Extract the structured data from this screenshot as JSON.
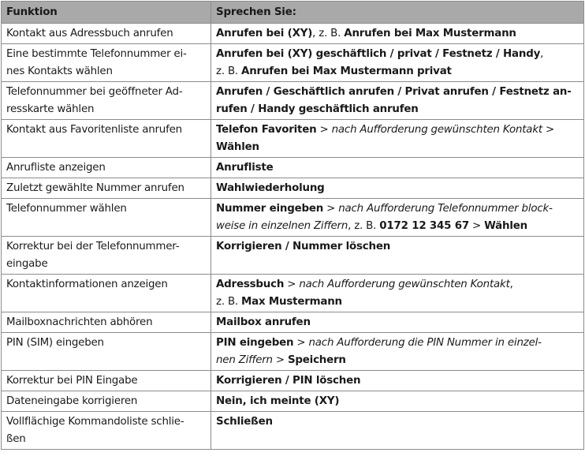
{
  "header": {
    "funktion": "Funktion",
    "sprechen": "Sprechen Sie:"
  },
  "rows": [
    {
      "funktion": [
        "Kontakt aus Adressbuch anrufen"
      ],
      "sprechen": [
        [
          {
            "t": "Anrufen bei (XY)",
            "s": "b"
          },
          {
            "t": ", z. B. ",
            "s": ""
          },
          {
            "t": "Anrufen bei Max Mustermann",
            "s": "b"
          }
        ]
      ]
    },
    {
      "funktion": [
        "Eine bestimmte Telefonnummer ei-",
        "nes Kontakts wählen"
      ],
      "sprechen": [
        [
          {
            "t": "Anrufen bei (XY) geschäftlich / privat / Festnetz / Handy",
            "s": "b"
          },
          {
            "t": ",",
            "s": ""
          }
        ],
        [
          {
            "t": "z. B. ",
            "s": ""
          },
          {
            "t": "Anrufen bei Max Mustermann privat",
            "s": "b"
          }
        ]
      ]
    },
    {
      "funktion": [
        "Telefonnummer bei geöffneter Ad-",
        "resskarte wählen"
      ],
      "sprechen": [
        [
          {
            "t": "Anrufen / Geschäftlich anrufen / Privat anrufen / Festnetz an-",
            "s": "b"
          }
        ],
        [
          {
            "t": "rufen / Handy geschäftlich anrufen",
            "s": "b"
          }
        ]
      ]
    },
    {
      "funktion": [
        "Kontakt aus Favoritenliste anrufen"
      ],
      "sprechen": [
        [
          {
            "t": "Telefon Favoriten",
            "s": "b"
          },
          {
            "t": " > ",
            "s": ""
          },
          {
            "t": "nach Aufforderung gewünschten Kontakt",
            "s": "i"
          },
          {
            "t": " >",
            "s": ""
          }
        ],
        [
          {
            "t": "Wählen",
            "s": "b"
          }
        ]
      ]
    },
    {
      "funktion": [
        "Anrufliste anzeigen"
      ],
      "sprechen": [
        [
          {
            "t": "Anrufliste",
            "s": "b"
          }
        ]
      ]
    },
    {
      "funktion": [
        "Zuletzt gewählte Nummer anrufen"
      ],
      "sprechen": [
        [
          {
            "t": "Wahlwiederholung",
            "s": "b"
          }
        ]
      ]
    },
    {
      "funktion": [
        "Telefonnummer wählen"
      ],
      "sprechen": [
        [
          {
            "t": "Nummer eingeben",
            "s": "b"
          },
          {
            "t": " > ",
            "s": ""
          },
          {
            "t": "nach Aufforderung Telefonnummer block-",
            "s": "i"
          }
        ],
        [
          {
            "t": "weise in einzelnen Ziffern",
            "s": "i"
          },
          {
            "t": ", z. B. ",
            "s": ""
          },
          {
            "t": "0172 12 345 67",
            "s": "b"
          },
          {
            "t": " > ",
            "s": ""
          },
          {
            "t": "Wählen",
            "s": "b"
          }
        ]
      ]
    },
    {
      "funktion": [
        "Korrektur bei der Telefonnummer-",
        "eingabe"
      ],
      "sprechen": [
        [
          {
            "t": "Korrigieren / Nummer löschen",
            "s": "b"
          }
        ],
        [
          {
            "t": " ",
            "s": ""
          }
        ]
      ]
    },
    {
      "funktion": [
        "Kontaktinformationen anzeigen"
      ],
      "sprechen": [
        [
          {
            "t": "Adressbuch",
            "s": "b"
          },
          {
            "t": " > ",
            "s": ""
          },
          {
            "t": "nach Aufforderung gewünschten Kontakt",
            "s": "i"
          },
          {
            "t": ",",
            "s": ""
          }
        ],
        [
          {
            "t": "z. B. ",
            "s": ""
          },
          {
            "t": "Max Mustermann",
            "s": "b"
          }
        ]
      ]
    },
    {
      "funktion": [
        "Mailboxnachrichten abhören"
      ],
      "sprechen": [
        [
          {
            "t": "Mailbox anrufen",
            "s": "b"
          }
        ]
      ]
    },
    {
      "funktion": [
        "PIN (SIM) eingeben"
      ],
      "sprechen": [
        [
          {
            "t": "PIN eingeben",
            "s": "b"
          },
          {
            "t": " > ",
            "s": ""
          },
          {
            "t": "nach Aufforderung die PIN Nummer in einzel-",
            "s": "i"
          }
        ],
        [
          {
            "t": "nen Ziffern",
            "s": "i"
          },
          {
            "t": " > ",
            "s": ""
          },
          {
            "t": "Speichern",
            "s": "b"
          }
        ]
      ]
    },
    {
      "funktion": [
        "Korrektur bei PIN Eingabe"
      ],
      "sprechen": [
        [
          {
            "t": "Korrigieren / PIN löschen",
            "s": "b"
          }
        ]
      ]
    },
    {
      "funktion": [
        "Dateneingabe korrigieren"
      ],
      "sprechen": [
        [
          {
            "t": "Nein, ich meinte (XY)",
            "s": "b"
          }
        ]
      ]
    },
    {
      "funktion": [
        "Vollflächige Kommandoliste schlie-",
        "ßen"
      ],
      "sprechen": [
        [
          {
            "t": "Schließen",
            "s": "b"
          }
        ],
        [
          {
            "t": " ",
            "s": ""
          }
        ]
      ]
    }
  ]
}
